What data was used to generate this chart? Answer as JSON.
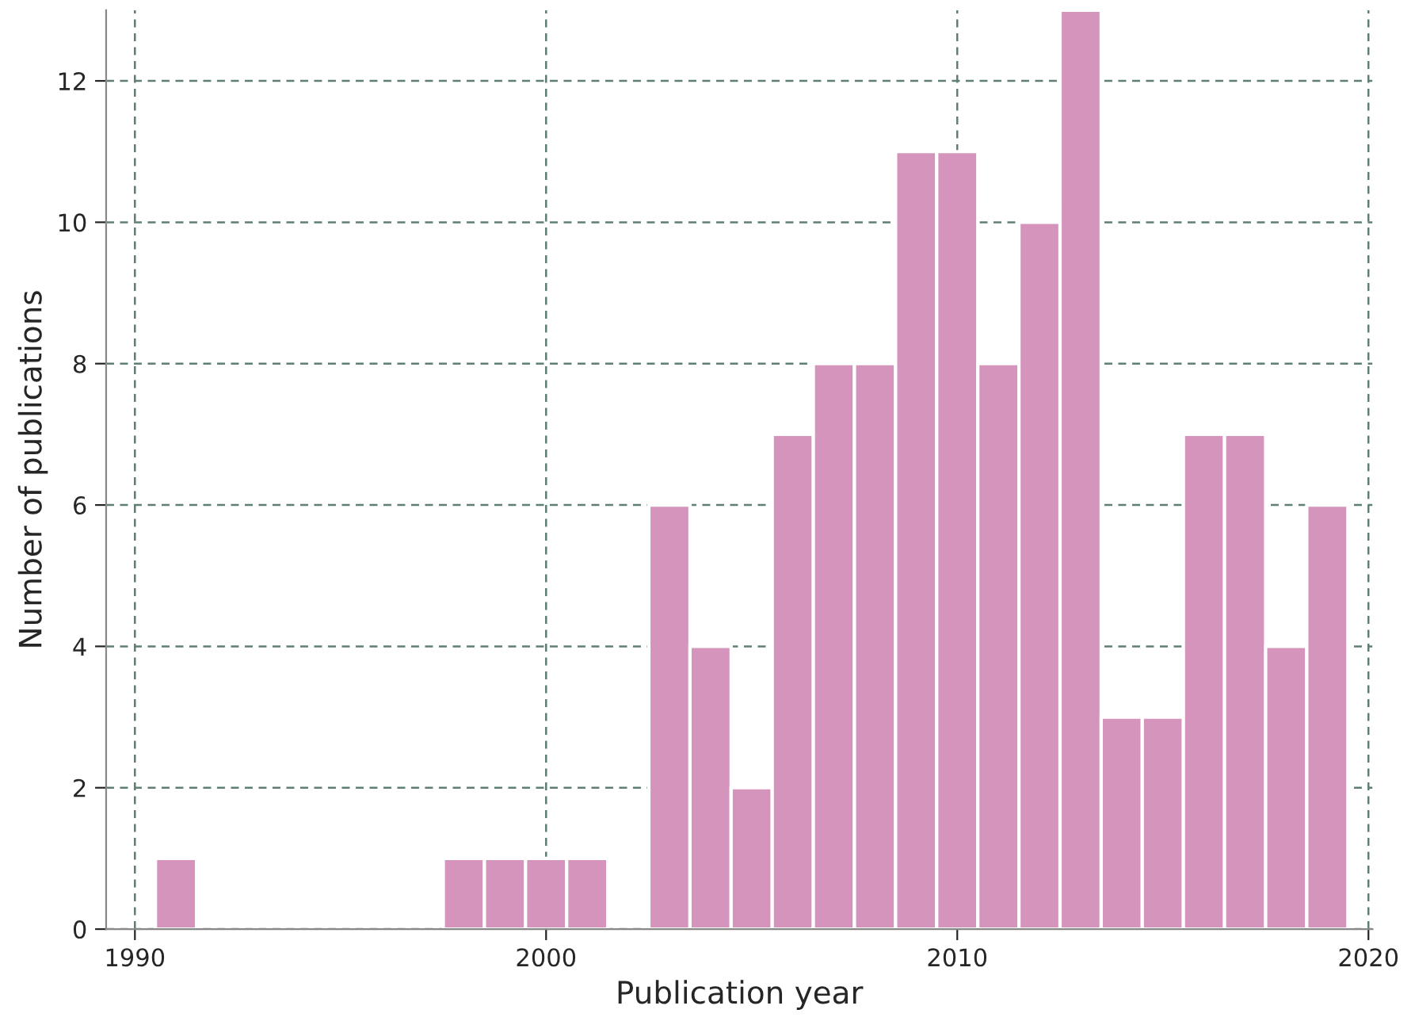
{
  "chart_data": {
    "type": "histogram",
    "xlabel": "Publication year",
    "ylabel": "Number of publications",
    "bins": [
      1990.5,
      1991.5,
      1992.5,
      1993.5,
      1994.5,
      1995.5,
      1996.5,
      1997.5,
      1998.5,
      1999.5,
      2000.5,
      2001.5,
      2002.5,
      2003.5,
      2004.5,
      2005.5,
      2006.5,
      2007.5,
      2008.5,
      2009.5,
      2010.5,
      2011.5,
      2012.5,
      2013.5,
      2014.5,
      2015.5,
      2016.5,
      2017.5,
      2018.5,
      2019.5
    ],
    "values": [
      1,
      0,
      0,
      0,
      0,
      0,
      0,
      1,
      1,
      1,
      1,
      0,
      6,
      4,
      2,
      7,
      8,
      8,
      11,
      11,
      8,
      10,
      13,
      3,
      3,
      7,
      7,
      4,
      6
    ],
    "color": "#d494bb",
    "xlim": [
      1989.3,
      2020.1
    ],
    "xticks": [
      1990,
      2000,
      2010,
      2020
    ],
    "ylim": [
      0,
      13
    ],
    "yticks": [
      0,
      2,
      4,
      6,
      8,
      10,
      12
    ],
    "grid": true
  }
}
